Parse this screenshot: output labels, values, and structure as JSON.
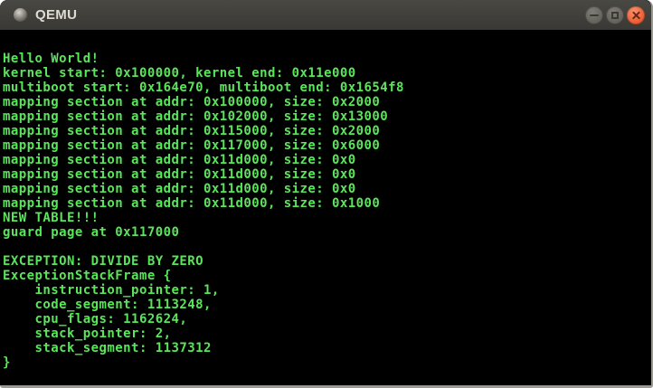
{
  "window": {
    "title": "QEMU",
    "icons": {
      "window_icon": "qemu-sphere-icon",
      "minimize": "−",
      "maximize": "▢",
      "close": "✕"
    }
  },
  "terminal": {
    "lines": [
      "Hello World!",
      "kernel start: 0x100000, kernel end: 0x11e000",
      "multiboot start: 0x164e70, multiboot end: 0x1654f8",
      "mapping section at addr: 0x100000, size: 0x2000",
      "mapping section at addr: 0x102000, size: 0x13000",
      "mapping section at addr: 0x115000, size: 0x2000",
      "mapping section at addr: 0x117000, size: 0x6000",
      "mapping section at addr: 0x11d000, size: 0x0",
      "mapping section at addr: 0x11d000, size: 0x0",
      "mapping section at addr: 0x11d000, size: 0x0",
      "mapping section at addr: 0x11d000, size: 0x1000",
      "NEW TABLE!!!",
      "guard page at 0x117000",
      "",
      "EXCEPTION: DIVIDE BY ZERO",
      "ExceptionStackFrame {",
      "    instruction_pointer: 1,",
      "    code_segment: 1113248,",
      "    cpu_flags: 1162624,",
      "    stack_pointer: 2,",
      "    stack_segment: 1137312",
      "}"
    ]
  },
  "colors": {
    "titlebar_bg_top": "#4a4843",
    "titlebar_bg_bottom": "#3a3834",
    "titlebar_text": "#dfdbd2",
    "terminal_bg": "#000000",
    "terminal_text": "#5ae65a",
    "border": "#9a9992",
    "close_button": "#ed5f35"
  }
}
